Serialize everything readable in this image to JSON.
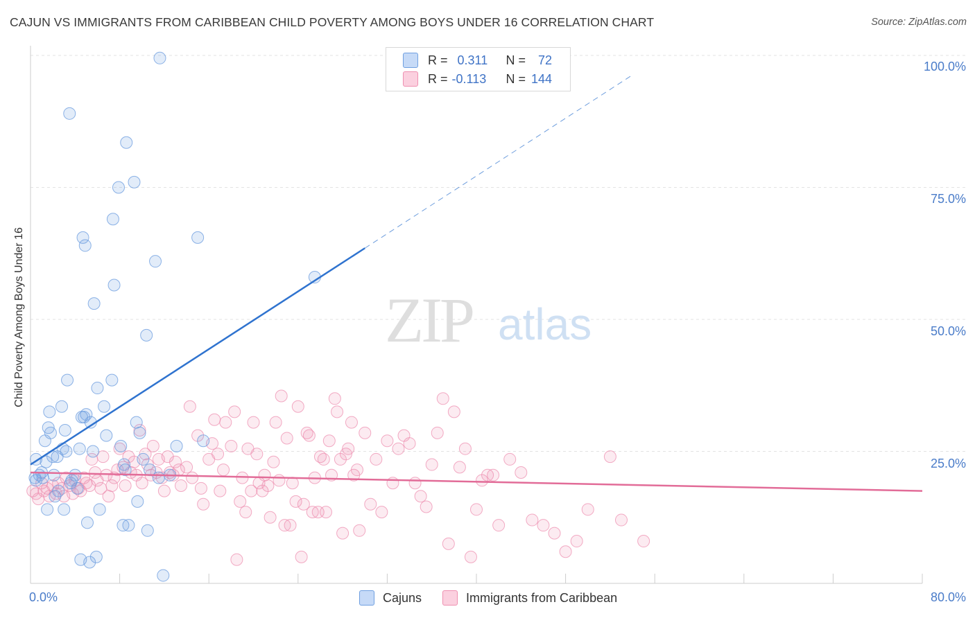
{
  "title": "CAJUN VS IMMIGRANTS FROM CARIBBEAN CHILD POVERTY AMONG BOYS UNDER 16 CORRELATION CHART",
  "source": "Source: ZipAtlas.com",
  "watermark": {
    "zip": "ZIP",
    "atlas": "atlas"
  },
  "legend_top": {
    "r_label": "R =",
    "n_label": "N =",
    "rows": [
      {
        "r": "0.311",
        "n": "72"
      },
      {
        "r": "-0.113",
        "n": "144"
      }
    ]
  },
  "chart_data": {
    "type": "scatter",
    "title": "CAJUN VS IMMIGRANTS FROM CARIBBEAN CHILD POVERTY AMONG BOYS UNDER 16 CORRELATION CHART",
    "xlabel": "",
    "ylabel": "Child Poverty Among Boys Under 16",
    "xlim": [
      0,
      80
    ],
    "ylim": [
      0,
      100
    ],
    "x_tick_labels": [
      "0.0%",
      "80.0%"
    ],
    "y_tick_labels": [
      "100.0%",
      "75.0%",
      "50.0%",
      "25.0%"
    ],
    "y_tick_values": [
      100,
      75,
      50,
      25
    ],
    "grid": true,
    "legend": "bottom-center",
    "colors": {
      "cajuns": "#6f9fe0",
      "caribbean": "#ee8fb0",
      "cajun_line": "#2f73cf",
      "caribbean_line": "#e26c98"
    },
    "series": [
      {
        "name": "Cajuns",
        "r": 0.311,
        "n": 72,
        "trend": {
          "x0": 0,
          "y0": 22.5,
          "x1": 30,
          "y1": 63.5,
          "dash_to_x": 54
        },
        "points": [
          [
            0.4,
            20.0
          ],
          [
            0.5,
            19.5
          ],
          [
            0.5,
            23.5
          ],
          [
            0.8,
            20.5
          ],
          [
            1.0,
            21.0
          ],
          [
            1.1,
            20.0
          ],
          [
            1.3,
            27.0
          ],
          [
            1.4,
            23.0
          ],
          [
            1.5,
            14.0
          ],
          [
            1.6,
            29.5
          ],
          [
            1.7,
            32.5
          ],
          [
            1.8,
            28.5
          ],
          [
            2.0,
            24.0
          ],
          [
            2.1,
            20.5
          ],
          [
            2.2,
            16.5
          ],
          [
            2.4,
            24.0
          ],
          [
            2.5,
            17.5
          ],
          [
            2.8,
            33.5
          ],
          [
            2.9,
            25.5
          ],
          [
            3.0,
            14.0
          ],
          [
            3.1,
            29.0
          ],
          [
            3.2,
            25.0
          ],
          [
            3.3,
            38.5
          ],
          [
            3.5,
            89.0
          ],
          [
            3.6,
            19.0
          ],
          [
            3.7,
            19.5
          ],
          [
            4.0,
            20.5
          ],
          [
            4.2,
            18.0
          ],
          [
            4.4,
            25.5
          ],
          [
            4.5,
            4.5
          ],
          [
            4.6,
            31.5
          ],
          [
            4.7,
            65.5
          ],
          [
            4.8,
            31.5
          ],
          [
            4.9,
            64.0
          ],
          [
            5.0,
            32.0
          ],
          [
            5.1,
            11.5
          ],
          [
            5.3,
            4.0
          ],
          [
            5.4,
            30.5
          ],
          [
            5.6,
            25.0
          ],
          [
            5.7,
            53.0
          ],
          [
            5.9,
            5.0
          ],
          [
            6.0,
            37.0
          ],
          [
            6.2,
            14.0
          ],
          [
            6.6,
            33.5
          ],
          [
            6.8,
            28.0
          ],
          [
            7.3,
            38.5
          ],
          [
            7.4,
            69.0
          ],
          [
            7.5,
            56.5
          ],
          [
            7.9,
            75.0
          ],
          [
            8.1,
            26.0
          ],
          [
            8.3,
            11.0
          ],
          [
            8.4,
            22.5
          ],
          [
            8.5,
            21.5
          ],
          [
            8.6,
            83.5
          ],
          [
            8.8,
            11.0
          ],
          [
            9.3,
            76.0
          ],
          [
            9.5,
            30.5
          ],
          [
            9.6,
            15.5
          ],
          [
            9.8,
            28.5
          ],
          [
            10.1,
            23.5
          ],
          [
            10.4,
            47.0
          ],
          [
            10.5,
            10.0
          ],
          [
            10.7,
            21.5
          ],
          [
            11.2,
            61.0
          ],
          [
            11.5,
            20.0
          ],
          [
            11.6,
            99.5
          ],
          [
            11.9,
            1.5
          ],
          [
            12.5,
            20.5
          ],
          [
            13.1,
            26.0
          ],
          [
            15.0,
            65.5
          ],
          [
            15.5,
            27.0
          ],
          [
            25.5,
            58.0
          ]
        ]
      },
      {
        "name": "Immigrants from Caribbean",
        "r": -0.113,
        "n": 144,
        "trend": {
          "x0": 0,
          "y0": 21.0,
          "x1": 80,
          "y1": 17.5
        },
        "points": [
          [
            0.2,
            17.5
          ],
          [
            0.5,
            17.0
          ],
          [
            0.7,
            16.0
          ],
          [
            1.0,
            19.0
          ],
          [
            1.2,
            17.5
          ],
          [
            1.5,
            18.0
          ],
          [
            1.7,
            16.5
          ],
          [
            2.0,
            18.5
          ],
          [
            2.3,
            17.0
          ],
          [
            2.5,
            19.0
          ],
          [
            2.8,
            18.0
          ],
          [
            3.0,
            16.5
          ],
          [
            3.2,
            20.0
          ],
          [
            3.5,
            18.5
          ],
          [
            3.8,
            17.0
          ],
          [
            4.0,
            19.5
          ],
          [
            4.3,
            18.0
          ],
          [
            4.5,
            17.5
          ],
          [
            4.8,
            20.0
          ],
          [
            5.0,
            19.0
          ],
          [
            5.3,
            18.5
          ],
          [
            5.5,
            23.5
          ],
          [
            5.8,
            21.0
          ],
          [
            6.0,
            19.5
          ],
          [
            6.3,
            18.0
          ],
          [
            6.5,
            24.0
          ],
          [
            6.8,
            20.5
          ],
          [
            7.0,
            16.5
          ],
          [
            7.3,
            18.5
          ],
          [
            7.5,
            20.0
          ],
          [
            7.8,
            21.5
          ],
          [
            8.0,
            25.5
          ],
          [
            8.3,
            22.0
          ],
          [
            8.5,
            18.5
          ],
          [
            8.8,
            24.0
          ],
          [
            9.0,
            21.0
          ],
          [
            9.3,
            23.0
          ],
          [
            9.5,
            20.5
          ],
          [
            9.8,
            29.0
          ],
          [
            10.0,
            19.0
          ],
          [
            10.3,
            24.5
          ],
          [
            10.5,
            22.5
          ],
          [
            10.8,
            20.5
          ],
          [
            11.0,
            26.0
          ],
          [
            11.3,
            21.0
          ],
          [
            11.5,
            23.5
          ],
          [
            11.8,
            20.0
          ],
          [
            12.0,
            17.5
          ],
          [
            12.3,
            24.0
          ],
          [
            12.5,
            21.0
          ],
          [
            12.8,
            20.5
          ],
          [
            13.0,
            23.0
          ],
          [
            13.3,
            21.5
          ],
          [
            13.5,
            18.5
          ],
          [
            14.0,
            22.0
          ],
          [
            14.3,
            33.5
          ],
          [
            14.5,
            20.0
          ],
          [
            15.0,
            28.0
          ],
          [
            15.3,
            18.0
          ],
          [
            15.5,
            15.0
          ],
          [
            16.0,
            23.5
          ],
          [
            16.3,
            26.5
          ],
          [
            16.5,
            31.0
          ],
          [
            16.8,
            24.5
          ],
          [
            17.0,
            17.5
          ],
          [
            17.3,
            21.5
          ],
          [
            17.5,
            30.5
          ],
          [
            18.0,
            26.0
          ],
          [
            18.3,
            32.5
          ],
          [
            18.5,
            4.5
          ],
          [
            18.8,
            15.5
          ],
          [
            19.0,
            20.0
          ],
          [
            19.3,
            13.5
          ],
          [
            19.5,
            25.5
          ],
          [
            19.8,
            17.5
          ],
          [
            20.0,
            30.5
          ],
          [
            20.3,
            24.5
          ],
          [
            20.5,
            19.0
          ],
          [
            20.8,
            17.5
          ],
          [
            21.0,
            20.5
          ],
          [
            21.3,
            18.5
          ],
          [
            21.5,
            12.5
          ],
          [
            21.8,
            23.0
          ],
          [
            22.0,
            30.5
          ],
          [
            22.3,
            19.5
          ],
          [
            22.5,
            35.5
          ],
          [
            22.8,
            11.0
          ],
          [
            23.0,
            27.5
          ],
          [
            23.3,
            11.0
          ],
          [
            23.5,
            19.0
          ],
          [
            23.8,
            15.5
          ],
          [
            24.0,
            33.5
          ],
          [
            24.3,
            5.0
          ],
          [
            24.5,
            15.0
          ],
          [
            24.8,
            28.5
          ],
          [
            25.0,
            28.0
          ],
          [
            25.3,
            13.5
          ],
          [
            25.5,
            20.0
          ],
          [
            25.8,
            13.5
          ],
          [
            26.0,
            24.0
          ],
          [
            26.3,
            23.5
          ],
          [
            26.5,
            13.5
          ],
          [
            26.8,
            27.0
          ],
          [
            27.0,
            20.5
          ],
          [
            27.3,
            35.0
          ],
          [
            27.5,
            32.5
          ],
          [
            27.8,
            23.5
          ],
          [
            28.0,
            9.5
          ],
          [
            28.3,
            24.5
          ],
          [
            28.5,
            25.5
          ],
          [
            28.8,
            30.5
          ],
          [
            29.0,
            20.5
          ],
          [
            29.3,
            21.5
          ],
          [
            29.5,
            10.0
          ],
          [
            30.0,
            28.5
          ],
          [
            30.5,
            15.0
          ],
          [
            31.0,
            23.5
          ],
          [
            31.5,
            13.5
          ],
          [
            32.0,
            27.0
          ],
          [
            32.5,
            19.0
          ],
          [
            33.0,
            25.5
          ],
          [
            33.5,
            28.0
          ],
          [
            34.0,
            26.5
          ],
          [
            34.5,
            19.0
          ],
          [
            35.0,
            16.5
          ],
          [
            35.5,
            14.5
          ],
          [
            36.0,
            22.5
          ],
          [
            36.5,
            28.5
          ],
          [
            37.0,
            35.0
          ],
          [
            37.5,
            7.5
          ],
          [
            38.0,
            32.5
          ],
          [
            38.5,
            22.0
          ],
          [
            39.0,
            25.5
          ],
          [
            39.5,
            5.0
          ],
          [
            40.0,
            14.0
          ],
          [
            40.5,
            19.5
          ],
          [
            41.0,
            20.5
          ],
          [
            41.5,
            20.5
          ],
          [
            42.0,
            11.0
          ],
          [
            43.0,
            23.5
          ],
          [
            44.0,
            21.0
          ],
          [
            45.0,
            12.0
          ],
          [
            46.0,
            11.0
          ],
          [
            47.0,
            9.5
          ],
          [
            48.0,
            6.0
          ],
          [
            49.0,
            8.0
          ],
          [
            50.0,
            14.0
          ],
          [
            52.0,
            24.0
          ],
          [
            53.0,
            12.0
          ],
          [
            55.0,
            8.0
          ]
        ]
      }
    ]
  },
  "legend_bottom": [
    {
      "label": "Cajuns"
    },
    {
      "label": "Immigrants from Caribbean"
    }
  ]
}
